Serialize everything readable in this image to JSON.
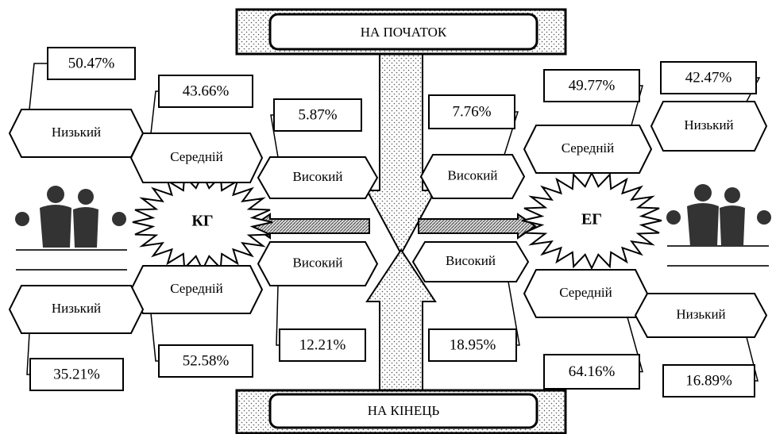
{
  "header": {
    "top": "НА ПОЧАТОК",
    "bottom": "НА КІНЕЦЬ"
  },
  "groups": [
    {
      "label": "КГ",
      "start": [
        {
          "level": "Низький",
          "value": "50.47%"
        },
        {
          "level": "Середній",
          "value": "43.66%"
        },
        {
          "level": "Високий",
          "value": "5.87%"
        }
      ],
      "end": [
        {
          "level": "Високий",
          "value": "12.21%"
        },
        {
          "level": "Середній",
          "value": "52.58%"
        },
        {
          "level": "Низький",
          "value": "35.21%"
        }
      ]
    },
    {
      "label": "ЕГ",
      "start": [
        {
          "level": "Низький",
          "value": "42.47%"
        },
        {
          "level": "Середній",
          "value": "49.77%"
        },
        {
          "level": "Високий",
          "value": "7.76%"
        }
      ],
      "end": [
        {
          "level": "Високий",
          "value": "18.95%"
        },
        {
          "level": "Середній",
          "value": "64.16%"
        },
        {
          "level": "Низький",
          "value": "16.89%"
        }
      ]
    }
  ]
}
